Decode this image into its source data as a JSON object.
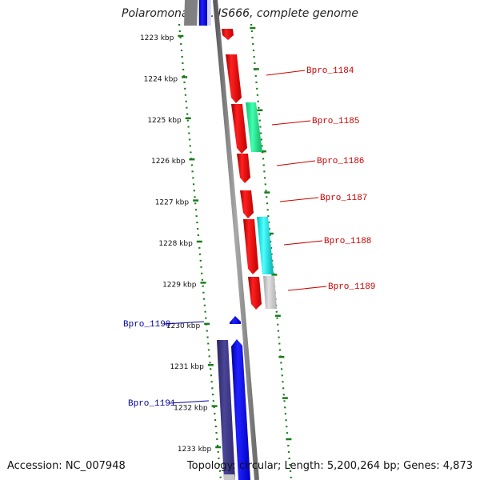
{
  "title": "Polaromonas sp. JS666, complete genome",
  "accession": "Accession: NC_007948",
  "topology": "Topology: circular; Length: 5,200,264 bp; Genes: 4,873",
  "kbp_labels": [
    "1223 kbp",
    "1224 kbp",
    "1225 kbp",
    "1226 kbp",
    "1227 kbp",
    "1228 kbp",
    "1229 kbp",
    "1230 kbp",
    "1231 kbp",
    "1232 kbp",
    "1233 kbp"
  ],
  "genes_right": [
    {
      "name": "Bpro_1184"
    },
    {
      "name": "Bpro_1185"
    },
    {
      "name": "Bpro_1186"
    },
    {
      "name": "Bpro_1187"
    },
    {
      "name": "Bpro_1188"
    },
    {
      "name": "Bpro_1189"
    }
  ],
  "genes_left": [
    {
      "name": "Bpro_1190"
    },
    {
      "name": "Bpro_1191"
    }
  ],
  "colors": {
    "forward_gene": "#ff0000",
    "reverse_gene": "#0000ff",
    "reverse_dark": "#3a3580",
    "green_feature": "#22ee99",
    "cyan_feature": "#11eeee",
    "grey_feature": "#c8c8c8",
    "backbone": "#8a8a8a",
    "ticks": "#1a7a1a",
    "label_right": "#cc0000",
    "label_left": "#000099"
  }
}
